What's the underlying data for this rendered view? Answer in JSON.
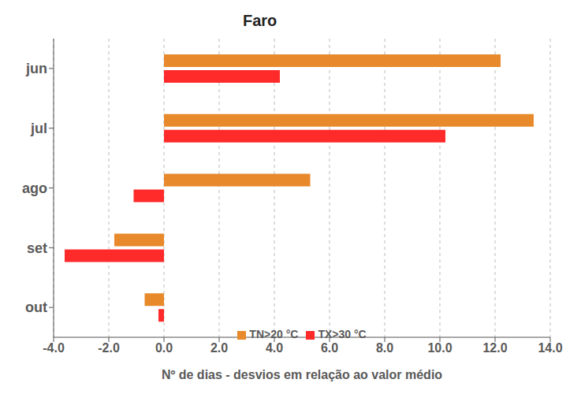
{
  "chart_data": {
    "type": "bar",
    "title": "Faro",
    "orientation": "horizontal",
    "x_label": "Nº de dias - desvios em relação ao valor médio",
    "categories": [
      "jun",
      "jul",
      "ago",
      "set",
      "out"
    ],
    "series": [
      {
        "name": "TN>20 °C",
        "color": "#E8892B",
        "values": [
          12.2,
          13.4,
          5.3,
          -1.8,
          -0.7
        ]
      },
      {
        "name": "TX>30 °C",
        "color": "#FF2A2A",
        "values": [
          4.2,
          10.2,
          -1.1,
          -3.6,
          -0.2
        ]
      }
    ],
    "xlim": [
      -4,
      14
    ],
    "xticks": [
      {
        "value": -4,
        "label": "-4.0"
      },
      {
        "value": -2,
        "label": "-2.0"
      },
      {
        "value": 0,
        "label": "0.0"
      },
      {
        "value": 2,
        "label": "2.0"
      },
      {
        "value": 4,
        "label": "4.0"
      },
      {
        "value": 6,
        "label": "6.0"
      },
      {
        "value": 8,
        "label": "8.0"
      },
      {
        "value": 10,
        "label": "10.0"
      },
      {
        "value": 12,
        "label": "12.0"
      },
      {
        "value": 14,
        "label": "14.0"
      }
    ],
    "grid": true,
    "legend": "bottom"
  }
}
